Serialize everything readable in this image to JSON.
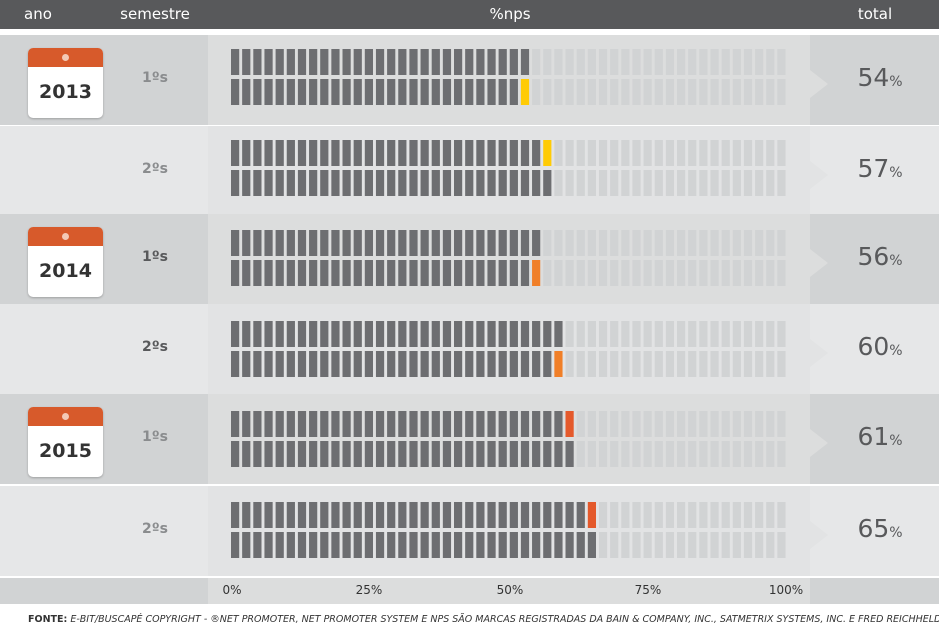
{
  "header": {
    "ano": "ano",
    "semestre": "semestre",
    "nps": "%nps",
    "total": "total"
  },
  "rows": [
    {
      "year": "2013",
      "semester": "1ºs",
      "total": "54",
      "pct": "%"
    },
    {
      "year": "",
      "semester": "2ºs",
      "total": "57",
      "pct": "%"
    },
    {
      "year": "2014",
      "semester": "1ºs",
      "total": "56",
      "pct": "%"
    },
    {
      "year": "",
      "semester": "2ºs",
      "total": "60",
      "pct": "%"
    },
    {
      "year": "2015",
      "semester": "1ºs",
      "total": "61",
      "pct": "%"
    },
    {
      "year": "",
      "semester": "2ºs",
      "total": "65",
      "pct": "%"
    }
  ],
  "axis_ticks": [
    "0%",
    "25%",
    "50%",
    "75%",
    "100%"
  ],
  "footer": {
    "label": "FONTE:",
    "text": " E-BIT/BUSCAPÉ COPYRIGHT - ®NET PROMOTER, NET PROMOTER SYSTEM E NPS SÃO MARCAS REGISTRADAS DA BAIN & COMPANY, INC., SATMETRIX SYSTEMS, INC. E FRED REICHHELD"
  },
  "colors": {
    "filled": "#6d6e71",
    "empty": "#d1d3d4",
    "yellow": "#ffcb05",
    "orange": "#f07f28",
    "red_orange": "#e4592b"
  },
  "chart_data": {
    "type": "bar",
    "categories": [
      "2013 1ºs",
      "2013 2ºs",
      "2014 1ºs",
      "2014 2ºs",
      "2015 1ºs",
      "2015 2ºs"
    ],
    "values": [
      54,
      57,
      56,
      60,
      61,
      65
    ],
    "xlabel": "%nps",
    "ylim": [
      0,
      100
    ],
    "highlight_colors": [
      "#ffcb05",
      "#ffcb05",
      "#f07f28",
      "#f07f28",
      "#e4592b",
      "#e4592b"
    ]
  }
}
